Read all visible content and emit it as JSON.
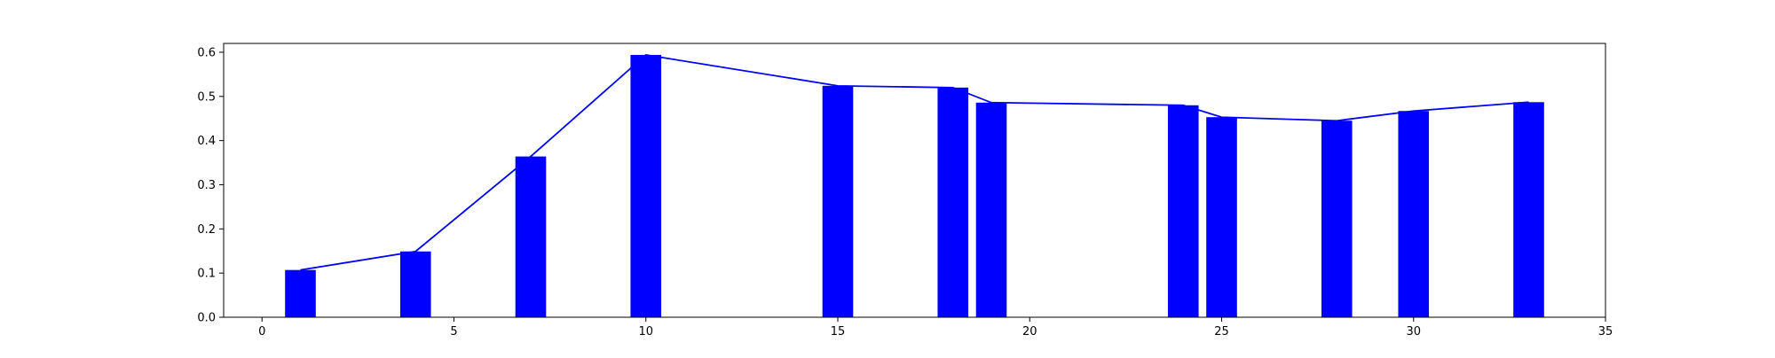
{
  "chart_data": {
    "type": "bar",
    "title": "",
    "xlabel": "",
    "ylabel": "",
    "xlim": [
      -1,
      35
    ],
    "ylim": [
      0,
      0.62
    ],
    "grid": false,
    "x_ticks": [
      0,
      5,
      10,
      15,
      20,
      25,
      30,
      35
    ],
    "y_ticks": [
      0.0,
      0.1,
      0.2,
      0.3,
      0.4,
      0.5,
      0.6
    ],
    "x_tick_labels": [
      "0",
      "5",
      "10",
      "15",
      "20",
      "25",
      "30",
      "35"
    ],
    "y_tick_labels": [
      "0.0",
      "0.1",
      "0.2",
      "0.3",
      "0.4",
      "0.5",
      "0.6"
    ],
    "bar_width": 0.8,
    "x": [
      1,
      4,
      7,
      10,
      15,
      18,
      19,
      24,
      25,
      28,
      30,
      33
    ],
    "series": [
      {
        "type": "bar",
        "color": "#0000ff",
        "values": [
          0.107,
          0.149,
          0.364,
          0.594,
          0.524,
          0.52,
          0.486,
          0.48,
          0.453,
          0.445,
          0.467,
          0.487
        ]
      },
      {
        "type": "line",
        "color": "#0000ff",
        "values": [
          0.107,
          0.149,
          0.364,
          0.594,
          0.524,
          0.52,
          0.486,
          0.48,
          0.453,
          0.445,
          0.467,
          0.487
        ]
      }
    ]
  }
}
